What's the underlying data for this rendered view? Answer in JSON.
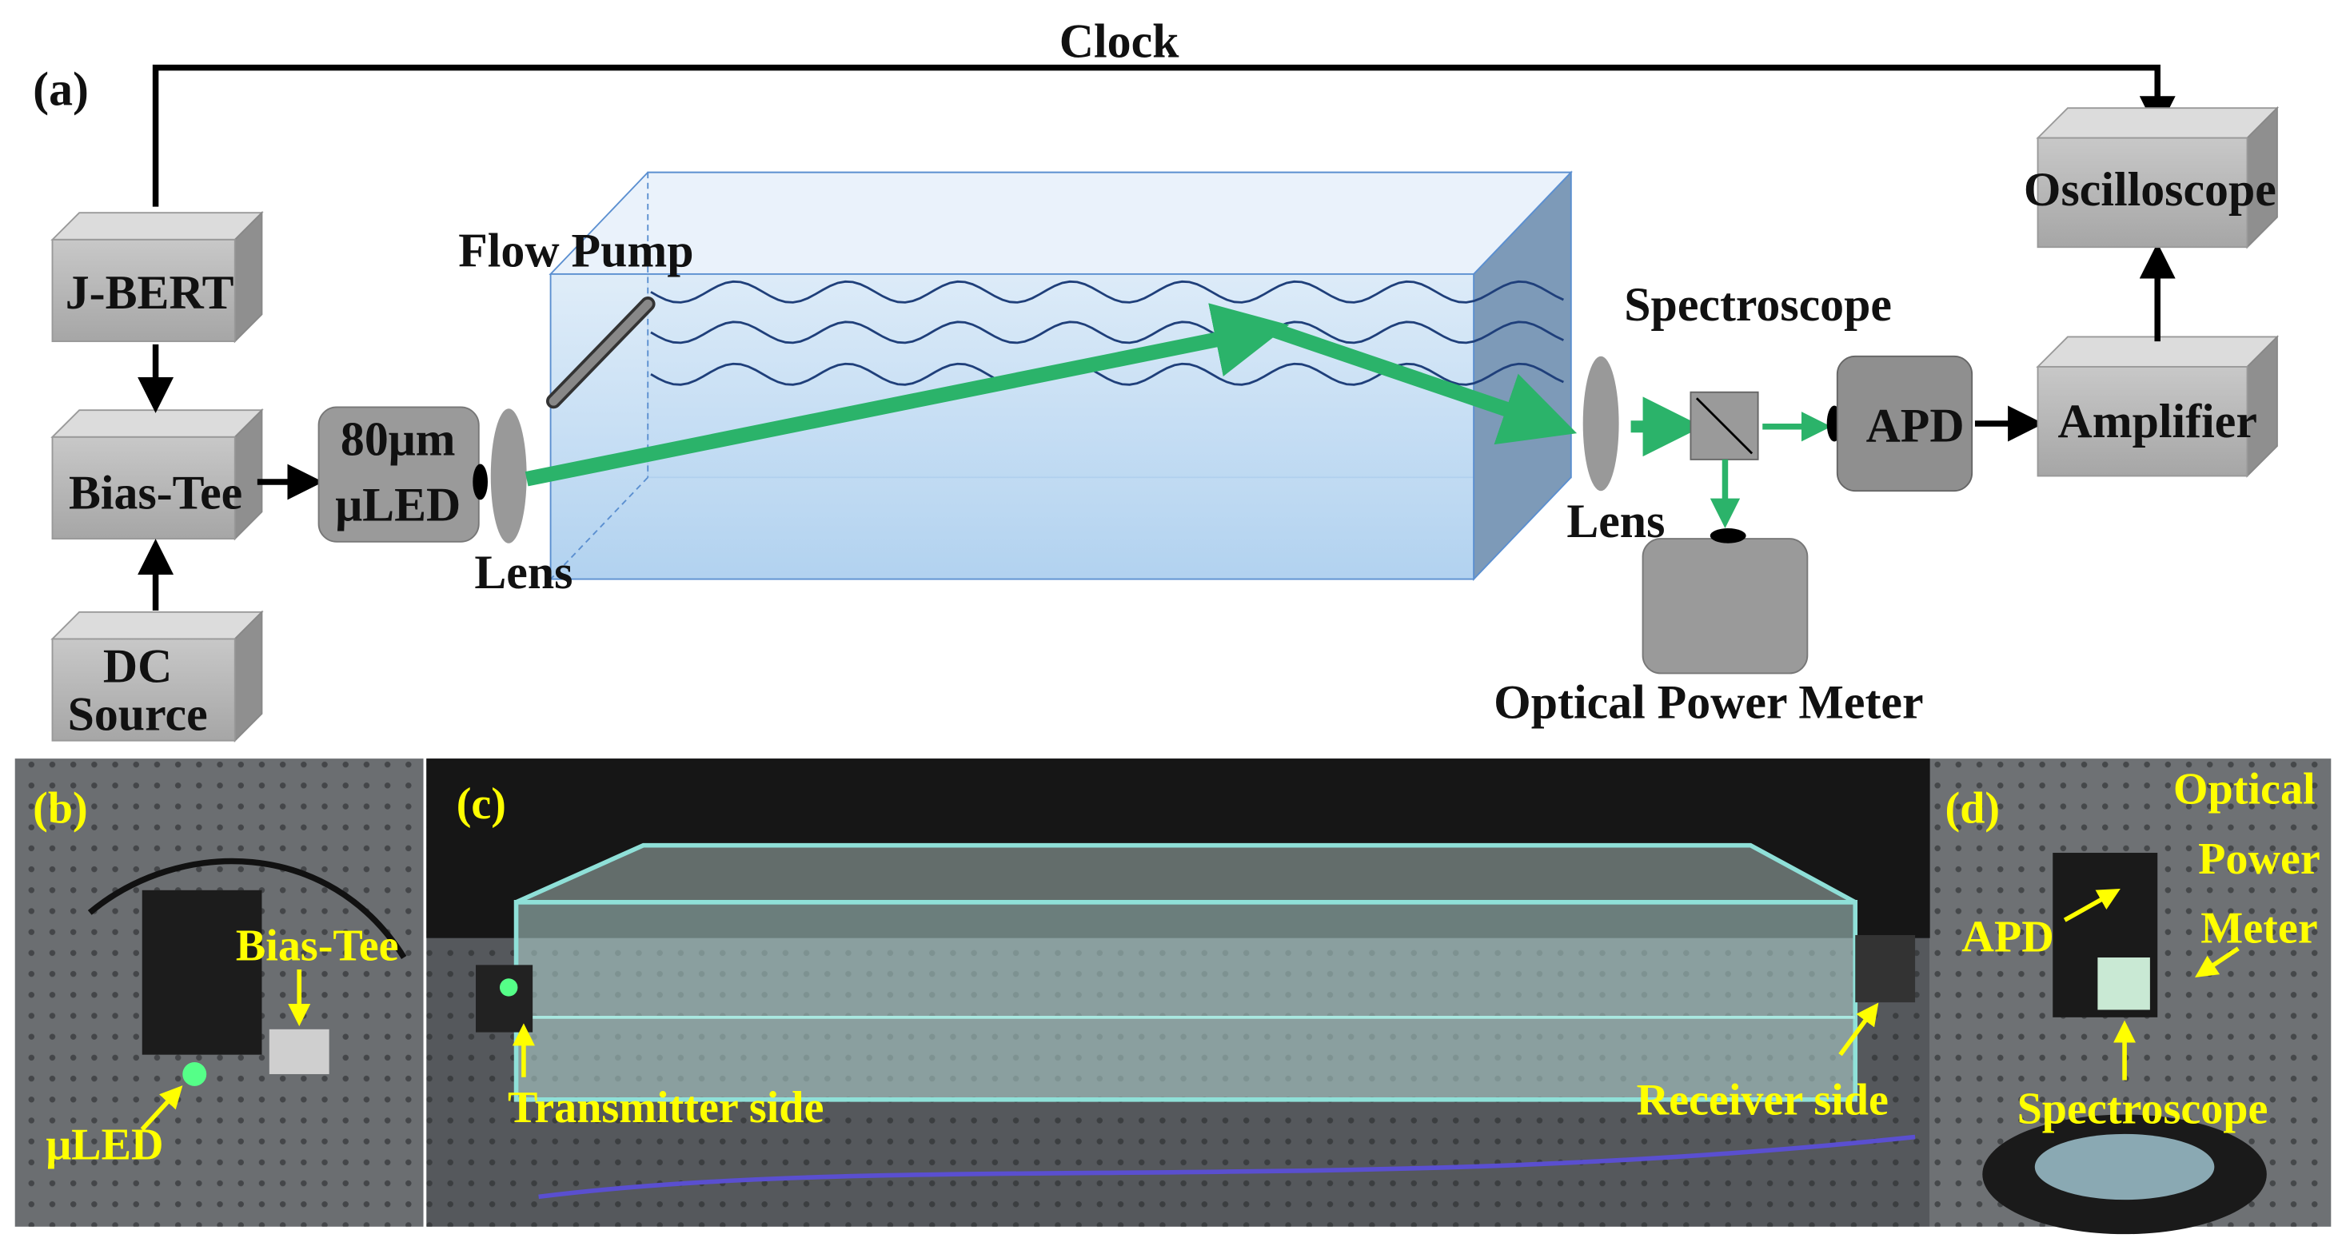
{
  "panel_a": {
    "label": "(a)",
    "clock": "Clock",
    "jbert": "J-BERT",
    "bias_tee": "Bias-Tee",
    "dc_source": [
      "DC",
      "Source"
    ],
    "uled": [
      "80μm",
      "μLED"
    ],
    "lens_tx": "Lens",
    "flow_pump": "Flow Pump",
    "spectroscope": "Spectroscope",
    "lens_rx": "Lens",
    "apd": "APD",
    "amplifier": "Amplifier",
    "oscilloscope": "Oscilloscope",
    "power_meter": "Optical Power Meter"
  },
  "panel_b": {
    "label": "(b)",
    "bias_tee": "Bias-Tee",
    "uled": "μLED"
  },
  "panel_c": {
    "label": "(c)",
    "transmitter": "Transmitter side",
    "receiver": "Receiver side"
  },
  "panel_d": {
    "label": "(d)",
    "power_meter": [
      "Optical",
      "Power",
      "Meter"
    ],
    "apd": "APD",
    "spectroscope": "Spectroscope"
  }
}
